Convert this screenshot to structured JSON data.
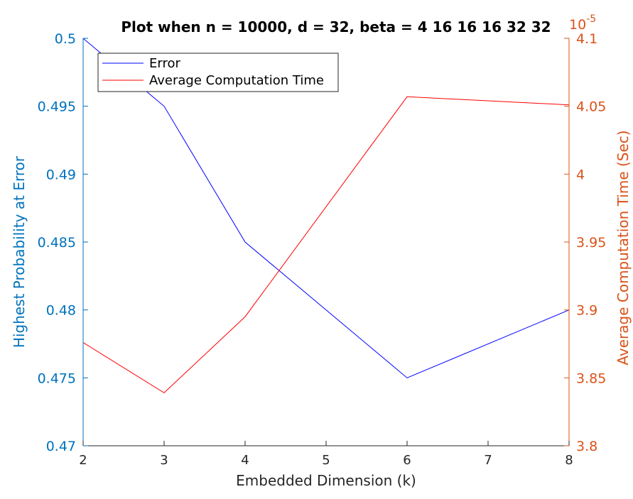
{
  "chart_data": {
    "type": "line",
    "title": "Plot when n = 10000, d = 32, beta = 4  16  16  16  32  32",
    "xlabel": "Embedded Dimension (k)",
    "ylabel_left": "Highest Probability at Error",
    "ylabel_right": "Average Computation Time (Sec)",
    "right_exponent": "10",
    "right_exponent_power": "-5",
    "x": [
      2,
      3,
      4,
      6,
      8
    ],
    "xlim": [
      2,
      8
    ],
    "ylim_left": [
      0.47,
      0.5
    ],
    "ylim_right": [
      3.8,
      4.1
    ],
    "x_ticks": [
      "2",
      "3",
      "4",
      "5",
      "6",
      "7",
      "8"
    ],
    "y_ticks_left": [
      "0.47",
      "0.475",
      "0.48",
      "0.485",
      "0.49",
      "0.495",
      "0.5"
    ],
    "y_ticks_right": [
      "3.8",
      "3.85",
      "3.9",
      "3.95",
      "4",
      "4.05",
      "4.1"
    ],
    "series": [
      {
        "name": "Error",
        "axis": "left",
        "color": "#0000ff",
        "values": [
          0.5,
          0.495,
          0.485,
          0.475,
          0.48
        ]
      },
      {
        "name": "Average Computation Time",
        "axis": "right",
        "color": "#ff0000",
        "values": [
          3.876,
          3.839,
          3.895,
          4.057,
          4.051
        ]
      }
    ],
    "left_axis_color": "#0072bd",
    "right_axis_color": "#d95319",
    "legend_position": "top-left",
    "grid": false
  }
}
